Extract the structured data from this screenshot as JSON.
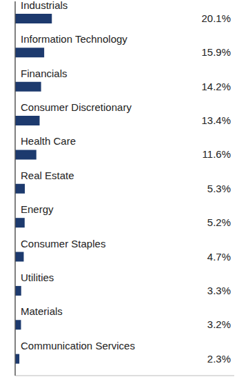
{
  "chart_data": {
    "type": "bar",
    "orientation": "horizontal",
    "categories": [
      "Industrials",
      "Information Technology",
      "Financials",
      "Consumer Discretionary",
      "Health Care",
      "Real Estate",
      "Energy",
      "Consumer Staples",
      "Utilities",
      "Materials",
      "Communication Services"
    ],
    "values": [
      20.1,
      15.9,
      14.2,
      13.4,
      11.6,
      5.3,
      5.2,
      4.7,
      3.3,
      3.2,
      2.3
    ],
    "value_labels": [
      "20.1%",
      "15.9%",
      "14.2%",
      "13.4%",
      "11.6%",
      "5.3%",
      "5.2%",
      "4.7%",
      "3.3%",
      "3.2%",
      "2.3%"
    ],
    "color": "#1d3a6e",
    "xlim": [
      0,
      120
    ],
    "data_labels": true,
    "tick_labels": false,
    "grid": false
  }
}
